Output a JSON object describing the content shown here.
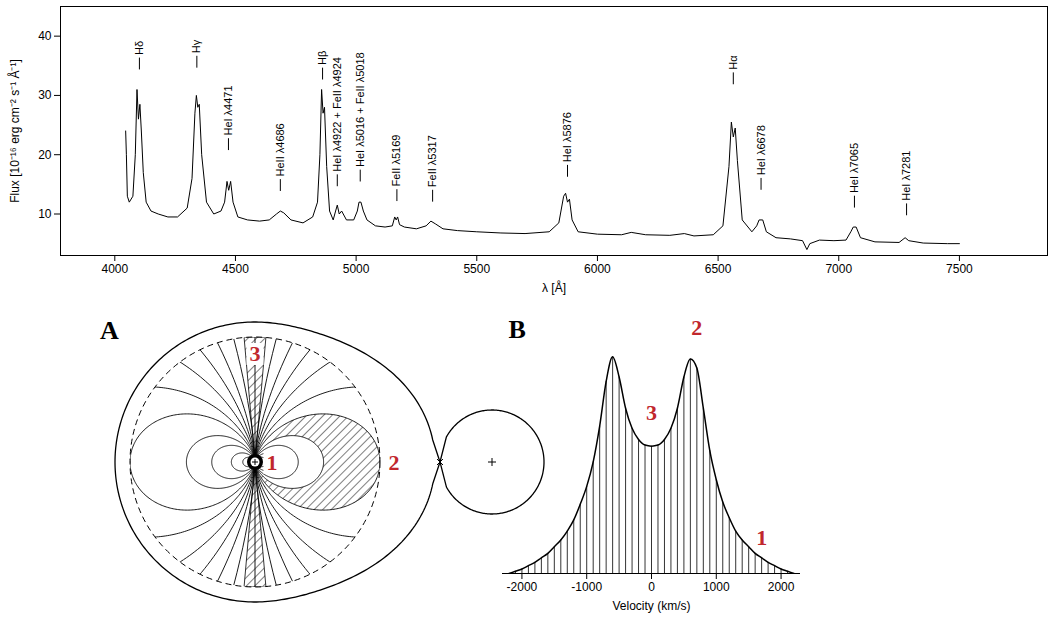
{
  "chart_data": [
    {
      "type": "line",
      "x_label": "λ [Å]",
      "y_label": "Flux [10⁻¹⁶ erg cm⁻² s⁻¹ Å⁻¹]",
      "color": "#000000",
      "xlim": [
        3775,
        7865
      ],
      "xticks": [
        4000,
        4500,
        5000,
        5500,
        6000,
        6500,
        7000,
        7500
      ],
      "ylim": [
        3,
        45
      ],
      "yticks": [
        10,
        20,
        30,
        40
      ],
      "x": [
        4045,
        4048,
        4052,
        4060,
        4075,
        4085,
        4092,
        4098,
        4104,
        4110,
        4118,
        4130,
        4150,
        4180,
        4220,
        4260,
        4300,
        4320,
        4332,
        4338,
        4344,
        4350,
        4360,
        4380,
        4410,
        4440,
        4455,
        4465,
        4472,
        4480,
        4490,
        4510,
        4550,
        4600,
        4640,
        4670,
        4686,
        4700,
        4730,
        4780,
        4820,
        4840,
        4850,
        4857,
        4863,
        4869,
        4878,
        4890,
        4905,
        4915,
        4922,
        4930,
        4940,
        4960,
        4990,
        5005,
        5012,
        5020,
        5030,
        5045,
        5080,
        5120,
        5150,
        5160,
        5166,
        5172,
        5180,
        5200,
        5250,
        5290,
        5310,
        5330,
        5360,
        5420,
        5500,
        5600,
        5700,
        5800,
        5840,
        5860,
        5868,
        5876,
        5884,
        5895,
        5920,
        6000,
        6100,
        6140,
        6200,
        6300,
        6360,
        6400,
        6480,
        6520,
        6545,
        6555,
        6563,
        6571,
        6580,
        6600,
        6640,
        6660,
        6670,
        6685,
        6700,
        6740,
        6800,
        6850,
        6868,
        6880,
        6920,
        6980,
        7030,
        7050,
        7060,
        7072,
        7090,
        7150,
        7250,
        7275,
        7290,
        7350,
        7450,
        7500
      ],
      "values": [
        24,
        20,
        13,
        12,
        13,
        20,
        31,
        26,
        28.5,
        24,
        17,
        12,
        10.5,
        10,
        9.5,
        9.5,
        11,
        16,
        27,
        30,
        28,
        28.5,
        20,
        12,
        10,
        10.5,
        12,
        15.5,
        14,
        15.5,
        12,
        9.5,
        9,
        8.8,
        9,
        10,
        10.5,
        10.2,
        9,
        8.5,
        9.5,
        12,
        20,
        31,
        27,
        28,
        18,
        10.5,
        9,
        10.5,
        11.5,
        10,
        10.5,
        9,
        9,
        10.5,
        12,
        12,
        10.5,
        9,
        8,
        7.8,
        8,
        9.5,
        9,
        9.5,
        8.2,
        7.8,
        7.5,
        8,
        8.8,
        8.3,
        7.5,
        7.2,
        7,
        6.8,
        6.7,
        7,
        8.5,
        13,
        13.5,
        12,
        12.5,
        9,
        7,
        6.6,
        6.5,
        6.9,
        6.5,
        6.4,
        6.7,
        6.3,
        6.5,
        8,
        18,
        25.5,
        23,
        24.5,
        19,
        9,
        7,
        8,
        9,
        9,
        7,
        6,
        5.8,
        5.5,
        4,
        5,
        5.6,
        5.5,
        5.6,
        7,
        7.8,
        7.8,
        6,
        5.3,
        5.2,
        6,
        5.5,
        5.1,
        5,
        5
      ],
      "annotations": [
        {
          "text": "Hδ",
          "x": 4102,
          "y": 34.3
        },
        {
          "text": "Hγ",
          "x": 4340,
          "y": 34.6
        },
        {
          "text": "HeI λ4471",
          "x": 4471,
          "y": 20.7
        },
        {
          "text": "HeII λ4686",
          "x": 4686,
          "y": 13.8
        },
        {
          "text": "Hβ",
          "x": 4861,
          "y": 32.6
        },
        {
          "text": "HeI λ4922 + FeII λ4924",
          "x": 4922,
          "y": 14.6
        },
        {
          "text": "HeI λ5016 + FeII λ5018",
          "x": 5017,
          "y": 15.4
        },
        {
          "text": "FeII λ5169",
          "x": 5169,
          "y": 12.1
        },
        {
          "text": "FeII λ5317",
          "x": 5317,
          "y": 12
        },
        {
          "text": "HeI λ5876",
          "x": 5876,
          "y": 16.2
        },
        {
          "text": "Hα",
          "x": 6563,
          "y": 31.8
        },
        {
          "text": "HeI λ6678",
          "x": 6678,
          "y": 14
        },
        {
          "text": "HeI λ7065",
          "x": 7065,
          "y": 11
        },
        {
          "text": "HeI λ7281",
          "x": 7281,
          "y": 9.7
        }
      ]
    },
    {
      "type": "line",
      "panel_label": "B",
      "x_label": "Velocity (km/s)",
      "color": "#000000",
      "tick_labels": "x",
      "xlim": [
        -2300,
        2300
      ],
      "xticks": [
        -2000,
        -1000,
        0,
        1000,
        2000
      ],
      "ylim": [
        0,
        1.2
      ],
      "x": [
        -2200,
        -2100,
        -2000,
        -1900,
        -1800,
        -1700,
        -1600,
        -1500,
        -1400,
        -1300,
        -1200,
        -1100,
        -1000,
        -900,
        -800,
        -700,
        -600,
        -500,
        -400,
        -300,
        -200,
        -100,
        0,
        100,
        200,
        300,
        400,
        500,
        600,
        700,
        800,
        900,
        1000,
        1100,
        1200,
        1300,
        1400,
        1500,
        1600,
        1700,
        1800,
        1900,
        2000,
        2100,
        2200
      ],
      "values": [
        0,
        0.01,
        0.02,
        0.035,
        0.05,
        0.07,
        0.09,
        0.12,
        0.15,
        0.19,
        0.24,
        0.31,
        0.39,
        0.5,
        0.66,
        0.86,
        0.97,
        0.88,
        0.74,
        0.65,
        0.6,
        0.575,
        0.57,
        0.575,
        0.6,
        0.65,
        0.74,
        0.88,
        0.96,
        0.92,
        0.74,
        0.55,
        0.42,
        0.32,
        0.25,
        0.19,
        0.15,
        0.12,
        0.09,
        0.07,
        0.05,
        0.035,
        0.02,
        0.01,
        0
      ],
      "annotations": [
        {
          "text": "1",
          "x": 1700,
          "y": 0.16,
          "color": "#c1272d"
        },
        {
          "text": "2",
          "x": 700,
          "y": 1.1,
          "color": "#c1272d"
        },
        {
          "text": "3",
          "x": 0,
          "y": 0.72,
          "color": "#c1272d"
        }
      ]
    }
  ],
  "diagram": {
    "panel_label": "A",
    "labels": [
      "1",
      "2",
      "3"
    ],
    "label_color": "#c1272d"
  }
}
